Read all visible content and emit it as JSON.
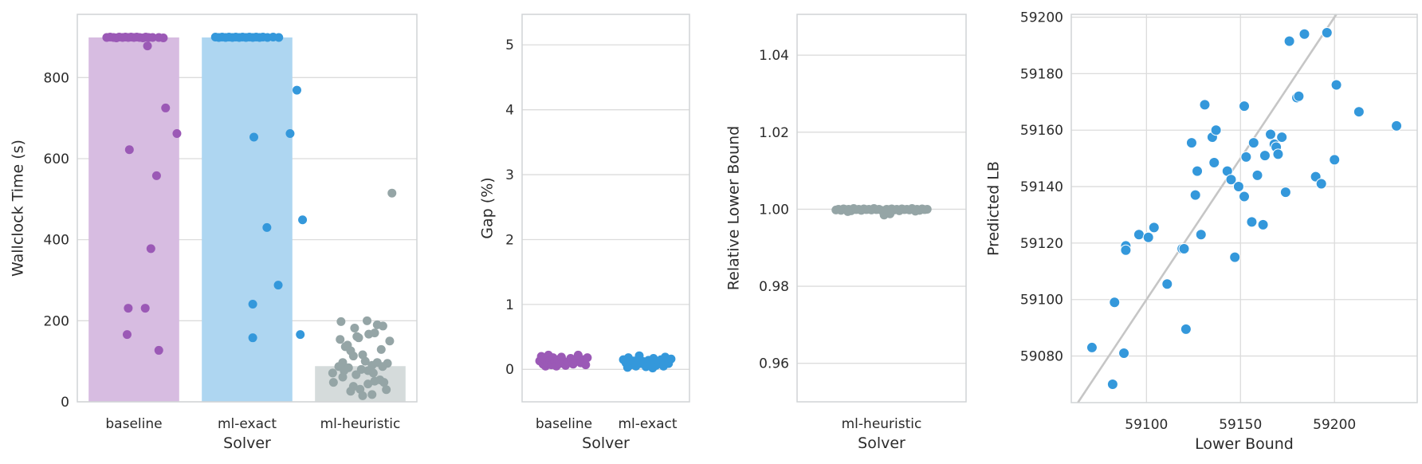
{
  "figure": {
    "background": "#ffffff",
    "grid_color": "#dcdcdc",
    "spine_color": "#d0d4d5",
    "text_color": "#2b2b2b"
  },
  "chart_data": [
    {
      "id": "wallclock",
      "type": "barstrip",
      "xlabel": "Solver",
      "ylabel": "Wallclock Time (s)",
      "categories": [
        "baseline",
        "ml-exact",
        "ml-heuristic"
      ],
      "ylim": [
        0,
        956
      ],
      "yticks": [
        0,
        200,
        400,
        600,
        800
      ],
      "grid": true,
      "groups": [
        {
          "name": "baseline",
          "bar_value": 899,
          "bar_color": "#d7bce1",
          "point_color": "#9b59b6",
          "points": [
            [
              -0.24,
              899
            ],
            [
              -0.21,
              900
            ],
            [
              -0.18,
              899
            ],
            [
              -0.155,
              898
            ],
            [
              -0.13,
              900
            ],
            [
              -0.1,
              899
            ],
            [
              -0.075,
              900
            ],
            [
              -0.05,
              899
            ],
            [
              -0.025,
              900
            ],
            [
              0,
              899
            ],
            [
              0.025,
              900
            ],
            [
              0.05,
              899
            ],
            [
              0.08,
              898
            ],
            [
              0.105,
              900
            ],
            [
              0.13,
              899
            ],
            [
              0.165,
              899
            ],
            [
              0.22,
              899
            ],
            [
              0.26,
              898
            ],
            [
              0.12,
              878
            ],
            [
              0.28,
              725
            ],
            [
              0.38,
              662
            ],
            [
              -0.04,
              622
            ],
            [
              0.2,
              558
            ],
            [
              0.15,
              378
            ],
            [
              -0.05,
              231
            ],
            [
              0.1,
              231
            ],
            [
              -0.06,
              166
            ],
            [
              0.22,
              127
            ]
          ]
        },
        {
          "name": "ml-exact",
          "bar_value": 899,
          "bar_color": "#aed6f1",
          "point_color": "#3498db",
          "points": [
            [
              -0.28,
              900
            ],
            [
              -0.25,
              899
            ],
            [
              -0.22,
              900
            ],
            [
              -0.19,
              899
            ],
            [
              -0.16,
              900
            ],
            [
              -0.13,
              899
            ],
            [
              -0.1,
              900
            ],
            [
              -0.07,
              899
            ],
            [
              -0.04,
              900
            ],
            [
              -0.01,
              899
            ],
            [
              0.02,
              900
            ],
            [
              0.05,
              899
            ],
            [
              0.08,
              900
            ],
            [
              0.11,
              899
            ],
            [
              0.14,
              900
            ],
            [
              0.18,
              899
            ],
            [
              0.23,
              900
            ],
            [
              0.28,
              899
            ],
            [
              0.44,
              769
            ],
            [
              0.38,
              662
            ],
            [
              0.06,
              653
            ],
            [
              0.49,
              449
            ],
            [
              0.175,
              430
            ],
            [
              0.275,
              288
            ],
            [
              0.05,
              241
            ],
            [
              0.47,
              166
            ],
            [
              0.05,
              158
            ]
          ]
        },
        {
          "name": "ml-heuristic",
          "bar_value": 88,
          "bar_color": "#d5dbdb",
          "point_color": "#95a5a6",
          "points": [
            [
              0.28,
              515
            ],
            [
              -0.17,
              198
            ],
            [
              0.06,
              200
            ],
            [
              0.15,
              190
            ],
            [
              -0.05,
              182
            ],
            [
              0.2,
              187
            ],
            [
              -0.03,
              161
            ],
            [
              0.075,
              167
            ],
            [
              0.127,
              170
            ],
            [
              -0.178,
              154
            ],
            [
              -0.113,
              140
            ],
            [
              -0.014,
              158
            ],
            [
              -0.132,
              136
            ],
            [
              -0.085,
              126
            ],
            [
              -0.061,
              113
            ],
            [
              -0.155,
              97
            ],
            [
              -0.19,
              87
            ],
            [
              -0.104,
              84
            ],
            [
              0.021,
              116
            ],
            [
              0.044,
              100
            ],
            [
              0.104,
              90
            ],
            [
              0.15,
              97
            ],
            [
              0.185,
              129
            ],
            [
              0.197,
              87
            ],
            [
              0.009,
              80
            ],
            [
              0.068,
              77
            ],
            [
              -0.143,
              77
            ],
            [
              -0.244,
              71
            ],
            [
              -0.037,
              67
            ],
            [
              0.115,
              71
            ],
            [
              0.174,
              54
            ],
            [
              -0.237,
              48
            ],
            [
              -0.061,
              38
            ],
            [
              -0.002,
              31
            ],
            [
              0.068,
              44
            ],
            [
              0.127,
              51
            ],
            [
              0.209,
              48
            ],
            [
              -0.155,
              61
            ],
            [
              -0.085,
              26
            ],
            [
              0.104,
              18
            ],
            [
              0.021,
              15
            ],
            [
              0.24,
              95
            ],
            [
              0.23,
              30
            ],
            [
              0.26,
              150
            ]
          ]
        }
      ]
    },
    {
      "id": "gap",
      "type": "strip",
      "xlabel": "Solver",
      "ylabel": "Gap (%)",
      "categories": [
        "baseline",
        "ml-exact"
      ],
      "ylim": [
        -0.5,
        5.47
      ],
      "yticks": [
        0,
        1,
        2,
        3,
        4,
        5
      ],
      "grid": true,
      "groups": [
        {
          "name": "baseline",
          "point_color": "#9b59b6",
          "points": [
            [
              -0.29,
              0.13
            ],
            [
              -0.27,
              0.2
            ],
            [
              -0.25,
              0.08
            ],
            [
              -0.235,
              0.16
            ],
            [
              -0.22,
              0.05
            ],
            [
              -0.2,
              0.1
            ],
            [
              -0.185,
              0.22
            ],
            [
              -0.17,
              0.14
            ],
            [
              -0.15,
              0.07
            ],
            [
              -0.13,
              0.18
            ],
            [
              -0.11,
              0.12
            ],
            [
              -0.09,
              0.05
            ],
            [
              -0.07,
              0.15
            ],
            [
              -0.05,
              0.09
            ],
            [
              -0.03,
              0.19
            ],
            [
              -0.01,
              0.13
            ],
            [
              0.02,
              0.06
            ],
            [
              0.05,
              0.11
            ],
            [
              0.08,
              0.17
            ],
            [
              0.11,
              0.08
            ],
            [
              0.14,
              0.13
            ],
            [
              0.17,
              0.22
            ],
            [
              0.2,
              0.1
            ],
            [
              0.23,
              0.15
            ],
            [
              0.26,
              0.07
            ],
            [
              0.28,
              0.18
            ]
          ]
        },
        {
          "name": "ml-exact",
          "point_color": "#3498db",
          "points": [
            [
              -0.29,
              0.15
            ],
            [
              -0.26,
              0.1
            ],
            [
              -0.23,
              0.18
            ],
            [
              -0.2,
              0.07
            ],
            [
              -0.17,
              0.13
            ],
            [
              -0.14,
              0.05
            ],
            [
              -0.11,
              0.16
            ],
            [
              -0.08,
              0.09
            ],
            [
              -0.05,
              0.12
            ],
            [
              -0.02,
              0.04
            ],
            [
              0.01,
              0.14
            ],
            [
              0.04,
              0.08
            ],
            [
              0.07,
              0.17
            ],
            [
              0.1,
              0.06
            ],
            [
              0.13,
              0.11
            ],
            [
              0.16,
              0.15
            ],
            [
              0.19,
              0.05
            ],
            [
              0.22,
              0.12
            ],
            [
              0.25,
              0.09
            ],
            [
              0.28,
              0.16
            ],
            [
              -0.24,
              0.03
            ],
            [
              0.06,
              0.02
            ],
            [
              -0.1,
              0.21
            ],
            [
              0.21,
              0.19
            ]
          ]
        }
      ]
    },
    {
      "id": "rlb",
      "type": "strip",
      "xlabel": "Solver",
      "ylabel": "Relative Lower Bound",
      "categories": [
        "ml-heuristic"
      ],
      "ylim": [
        0.95,
        1.0506
      ],
      "yticks": [
        0.96,
        0.98,
        1.0,
        1.02,
        1.04
      ],
      "ytick_labels": [
        "0.96",
        "0.98",
        "1.00",
        "1.02",
        "1.04"
      ],
      "grid": true,
      "groups": [
        {
          "name": "ml-heuristic",
          "point_color": "#95a5a6",
          "points": [
            [
              -0.27,
              0.9998
            ],
            [
              -0.255,
              1.0
            ],
            [
              -0.24,
              0.9997
            ],
            [
              -0.225,
              1.0001
            ],
            [
              -0.21,
              0.9999
            ],
            [
              -0.195,
              1.0
            ],
            [
              -0.18,
              0.9996
            ],
            [
              -0.165,
              1.0002
            ],
            [
              -0.15,
              0.9999
            ],
            [
              -0.135,
              1.0
            ],
            [
              -0.12,
              0.9997
            ],
            [
              -0.105,
              1.0001
            ],
            [
              -0.09,
              0.9999
            ],
            [
              -0.075,
              1.0
            ],
            [
              -0.06,
              0.9998
            ],
            [
              -0.045,
              1.0002
            ],
            [
              -0.03,
              0.9999
            ],
            [
              -0.015,
              1.0
            ],
            [
              0.0,
              0.9997
            ],
            [
              0.015,
              0.9985
            ],
            [
              0.03,
              1.0
            ],
            [
              0.045,
              0.9999
            ],
            [
              0.06,
              1.0001
            ],
            [
              0.075,
              0.9998
            ],
            [
              0.09,
              1.0
            ],
            [
              0.105,
              0.9996
            ],
            [
              0.12,
              1.0001
            ],
            [
              0.135,
              0.9999
            ],
            [
              0.15,
              1.0
            ],
            [
              0.165,
              0.9998
            ],
            [
              0.18,
              1.0002
            ],
            [
              0.195,
              0.9999
            ],
            [
              0.21,
              1.0
            ],
            [
              0.225,
              0.9997
            ],
            [
              0.24,
              1.0001
            ],
            [
              0.255,
              0.9999
            ],
            [
              0.27,
              1.0
            ],
            [
              0.05,
              0.9988
            ],
            [
              -0.2,
              0.9994
            ],
            [
              0.2,
              0.9995
            ]
          ]
        }
      ]
    },
    {
      "id": "pred",
      "type": "scatter",
      "xlabel": "Lower Bound",
      "ylabel": "Predicted LB",
      "xlim": [
        59060,
        59244
      ],
      "ylim": [
        59063.5,
        59201
      ],
      "xticks": [
        59100,
        59150,
        59200
      ],
      "yticks": [
        59080,
        59100,
        59120,
        59140,
        59160,
        59180,
        59200
      ],
      "grid": true,
      "identity_line": true,
      "line_color": "#c6c6c6",
      "point_color": "#3498db",
      "points": [
        [
          59071,
          59083
        ],
        [
          59083,
          59099
        ],
        [
          59082,
          59070
        ],
        [
          59088,
          59081
        ],
        [
          59089,
          59119
        ],
        [
          59089,
          59117.5
        ],
        [
          59096,
          59123
        ],
        [
          59101,
          59122
        ],
        [
          59104,
          59125.5
        ],
        [
          59111,
          59105.5
        ],
        [
          59119,
          59118
        ],
        [
          59120,
          59118
        ],
        [
          59121,
          59089.5
        ],
        [
          59124,
          59155.5
        ],
        [
          59126,
          59137
        ],
        [
          59127,
          59145.5
        ],
        [
          59129,
          59123
        ],
        [
          59131,
          59169
        ],
        [
          59135,
          59157.5
        ],
        [
          59136,
          59148.5
        ],
        [
          59137,
          59160
        ],
        [
          59143,
          59145.5
        ],
        [
          59145,
          59142.5
        ],
        [
          59147,
          59115
        ],
        [
          59149,
          59140
        ],
        [
          59152,
          59136.5
        ],
        [
          59152,
          59168.5
        ],
        [
          59153,
          59150.5
        ],
        [
          59156,
          59127.5
        ],
        [
          59157,
          59155.5
        ],
        [
          59159,
          59144
        ],
        [
          59162,
          59126.5
        ],
        [
          59163,
          59151
        ],
        [
          59166,
          59158.5
        ],
        [
          59168,
          59155
        ],
        [
          59169,
          59154
        ],
        [
          59170,
          59151.5
        ],
        [
          59172,
          59157.5
        ],
        [
          59174,
          59138
        ],
        [
          59176,
          59191.5
        ],
        [
          59180,
          59171.5
        ],
        [
          59181,
          59172
        ],
        [
          59184,
          59194
        ],
        [
          59190,
          59143.5
        ],
        [
          59193,
          59141
        ],
        [
          59196,
          59194.5
        ],
        [
          59200,
          59149.5
        ],
        [
          59201,
          59176
        ],
        [
          59213,
          59166.5
        ],
        [
          59233,
          59161.5
        ]
      ]
    }
  ]
}
